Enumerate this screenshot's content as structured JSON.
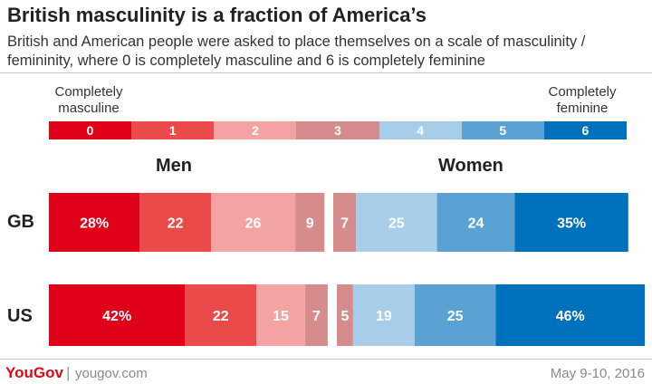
{
  "title": "British masculinity is a fraction of America’s",
  "subtitle": "British and American people were asked to place themselves on a scale of masculinity / femininity, where 0 is completely masculine and 6 is completely feminine",
  "scale": {
    "left_label": "Completely masculine",
    "right_label": "Completely feminine",
    "ticks": [
      "0",
      "1",
      "2",
      "3",
      "4",
      "5",
      "6"
    ],
    "colors": [
      "#e1001a",
      "#ea4a4a",
      "#f4a3a3",
      "#d68c8c",
      "#a7cde9",
      "#5ba2d4",
      "#0071bc"
    ]
  },
  "chart_data": {
    "type": "bar",
    "stacked": true,
    "groups": [
      "Men",
      "Women"
    ],
    "categories": [
      "GB",
      "US"
    ],
    "men_series": [
      "0",
      "1",
      "2",
      "3"
    ],
    "women_series": [
      "3",
      "4",
      "5",
      "6"
    ],
    "men": {
      "GB": {
        "values": [
          28,
          22,
          26,
          9
        ],
        "labels": [
          "28%",
          "22",
          "26",
          "9"
        ]
      },
      "US": {
        "values": [
          42,
          22,
          15,
          7
        ],
        "labels": [
          "42%",
          "22",
          "15",
          "7"
        ]
      }
    },
    "women": {
      "GB": {
        "values": [
          7,
          25,
          24,
          35
        ],
        "labels": [
          "7",
          "25",
          "24",
          "35%"
        ]
      },
      "US": {
        "values": [
          5,
          19,
          25,
          46
        ],
        "labels": [
          "5",
          "19",
          "25",
          "46%"
        ]
      }
    }
  },
  "footer": {
    "brand": "YouGov",
    "separator": "|",
    "site": "yougov.com",
    "date": "May 9-10, 2016"
  }
}
